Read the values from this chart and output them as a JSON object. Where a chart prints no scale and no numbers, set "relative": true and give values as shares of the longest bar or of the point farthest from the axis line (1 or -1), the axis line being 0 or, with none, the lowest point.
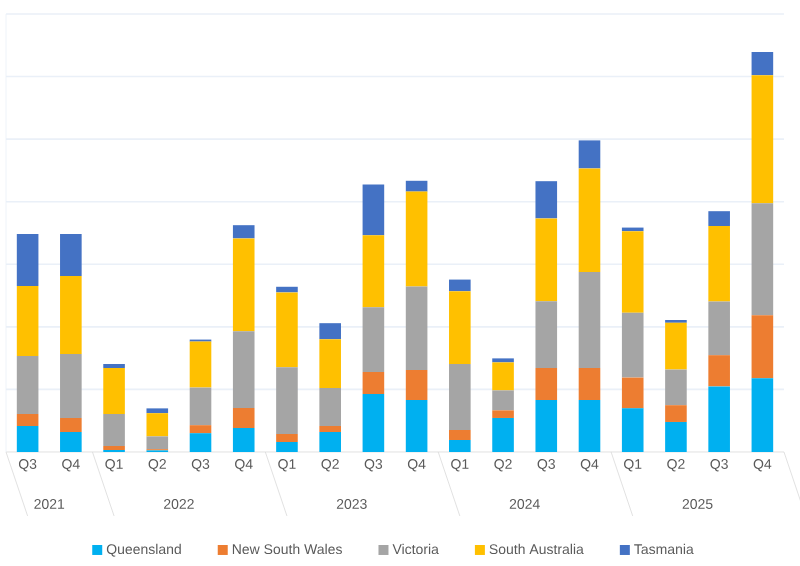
{
  "chart_data": {
    "type": "bar",
    "stacked": true,
    "relative": true,
    "grid": "y",
    "legend": "bottom",
    "categories": [
      "Q3",
      "Q4",
      "Q1",
      "Q2",
      "Q3",
      "Q4",
      "Q1",
      "Q2",
      "Q3",
      "Q4",
      "Q1",
      "Q2",
      "Q3",
      "Q4",
      "Q1",
      "Q2",
      "Q3",
      "Q4"
    ],
    "annotations": [
      "2021",
      "2022",
      "2023",
      "2024",
      "2025"
    ],
    "series": [
      {
        "name": "Queensland",
        "color": "#00b0f0",
        "values": [
          0.065,
          0.05,
          0.005,
          0.004,
          0.047,
          0.06,
          0.025,
          0.05,
          0.145,
          0.13,
          0.03,
          0.085,
          0.13,
          0.13,
          0.109,
          0.075,
          0.164,
          0.184
        ]
      },
      {
        "name": "New South Wales",
        "color": "#ed7d31",
        "values": [
          0.03,
          0.035,
          0.01,
          0.003,
          0.02,
          0.05,
          0.02,
          0.015,
          0.055,
          0.075,
          0.025,
          0.019,
          0.08,
          0.08,
          0.077,
          0.042,
          0.078,
          0.158
        ]
      },
      {
        "name": "Victoria",
        "color": "#a5a5a5",
        "values": [
          0.145,
          0.16,
          0.08,
          0.032,
          0.094,
          0.192,
          0.167,
          0.095,
          0.162,
          0.209,
          0.165,
          0.05,
          0.167,
          0.24,
          0.162,
          0.089,
          0.134,
          0.28
        ]
      },
      {
        "name": "South Australia",
        "color": "#ffc000",
        "values": [
          0.175,
          0.195,
          0.115,
          0.058,
          0.115,
          0.232,
          0.187,
          0.122,
          0.18,
          0.237,
          0.182,
          0.07,
          0.207,
          0.259,
          0.204,
          0.117,
          0.189,
          0.32
        ]
      },
      {
        "name": "Tasmania",
        "color": "#4472c4",
        "values": [
          0.13,
          0.105,
          0.01,
          0.012,
          0.005,
          0.033,
          0.014,
          0.04,
          0.127,
          0.027,
          0.029,
          0.01,
          0.093,
          0.07,
          0.009,
          0.007,
          0.037,
          0.058
        ]
      }
    ]
  }
}
